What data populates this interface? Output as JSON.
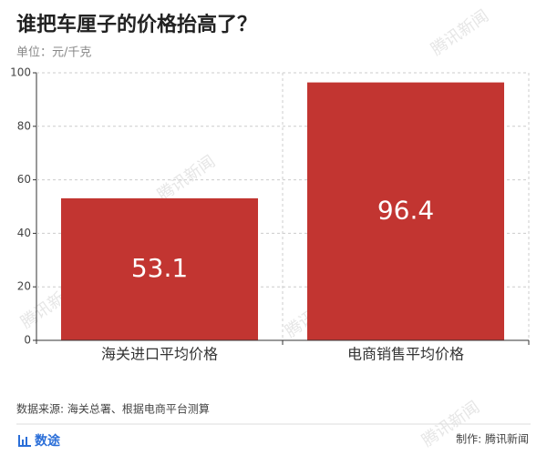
{
  "chart_data": {
    "type": "bar",
    "title": "谁把车厘子的价格抬高了？",
    "subtitle": "单位：元/千克",
    "categories": [
      "海关进口平均价格",
      "电商销售平均价格"
    ],
    "values": [
      53.1,
      96.4
    ],
    "color": "#c23531",
    "ylim": [
      0,
      100
    ],
    "yticks": [
      0,
      20,
      40,
      60,
      80,
      100
    ],
    "grid": true,
    "source": "数据来源: 海关总署、根据电商平台测算",
    "brand": "数途",
    "credit": "制作: 腾讯新闻",
    "watermark": "腾讯新闻"
  }
}
